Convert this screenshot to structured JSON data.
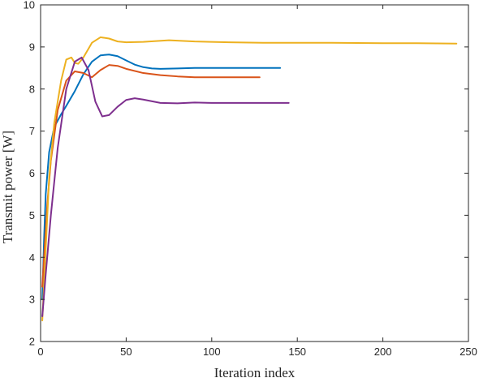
{
  "chart_data": {
    "type": "line",
    "xlabel": "Iteration index",
    "ylabel": "Transmit power [W]",
    "xlim": [
      0,
      250
    ],
    "ylim": [
      2,
      10
    ],
    "xticks": [
      0,
      50,
      100,
      150,
      200,
      250
    ],
    "yticks": [
      2,
      3,
      4,
      5,
      6,
      7,
      8,
      9,
      10
    ],
    "grid": false,
    "series": [
      {
        "color": "#0072BD",
        "x": [
          1,
          2,
          3,
          5,
          8,
          12,
          15,
          20,
          25,
          30,
          35,
          40,
          45,
          50,
          55,
          60,
          65,
          70,
          80,
          90,
          100,
          110,
          120,
          130,
          140
        ],
        "y": [
          3.0,
          4.4,
          5.5,
          6.5,
          7.1,
          7.4,
          7.6,
          7.95,
          8.35,
          8.65,
          8.8,
          8.82,
          8.78,
          8.68,
          8.58,
          8.52,
          8.49,
          8.48,
          8.49,
          8.5,
          8.5,
          8.5,
          8.5,
          8.5,
          8.5
        ]
      },
      {
        "color": "#D95319",
        "x": [
          1,
          2,
          4,
          6,
          10,
          15,
          20,
          25,
          30,
          35,
          40,
          45,
          50,
          60,
          70,
          80,
          90,
          100,
          110,
          120,
          128
        ],
        "y": [
          3.3,
          4.0,
          5.3,
          6.3,
          7.5,
          8.2,
          8.42,
          8.38,
          8.28,
          8.45,
          8.57,
          8.55,
          8.48,
          8.38,
          8.33,
          8.3,
          8.28,
          8.28,
          8.28,
          8.28,
          8.28
        ]
      },
      {
        "color": "#EDB120",
        "x": [
          1,
          3,
          5,
          8,
          12,
          15,
          18,
          20,
          22,
          25,
          30,
          35,
          40,
          45,
          50,
          60,
          75,
          90,
          110,
          130,
          150,
          170,
          200,
          220,
          243
        ],
        "y": [
          2.5,
          4.2,
          5.9,
          7.2,
          8.2,
          8.7,
          8.75,
          8.62,
          8.6,
          8.75,
          9.1,
          9.23,
          9.2,
          9.13,
          9.11,
          9.12,
          9.16,
          9.13,
          9.11,
          9.1,
          9.1,
          9.1,
          9.09,
          9.09,
          9.08
        ]
      },
      {
        "color": "#7E2F8E",
        "x": [
          1,
          3,
          6,
          10,
          15,
          20,
          24,
          28,
          32,
          36,
          40,
          45,
          50,
          55,
          60,
          70,
          80,
          90,
          100,
          120,
          145
        ],
        "y": [
          2.6,
          3.6,
          5.0,
          6.6,
          8.0,
          8.65,
          8.75,
          8.45,
          7.7,
          7.35,
          7.38,
          7.58,
          7.74,
          7.78,
          7.75,
          7.67,
          7.66,
          7.68,
          7.67,
          7.67,
          7.67
        ]
      }
    ]
  }
}
